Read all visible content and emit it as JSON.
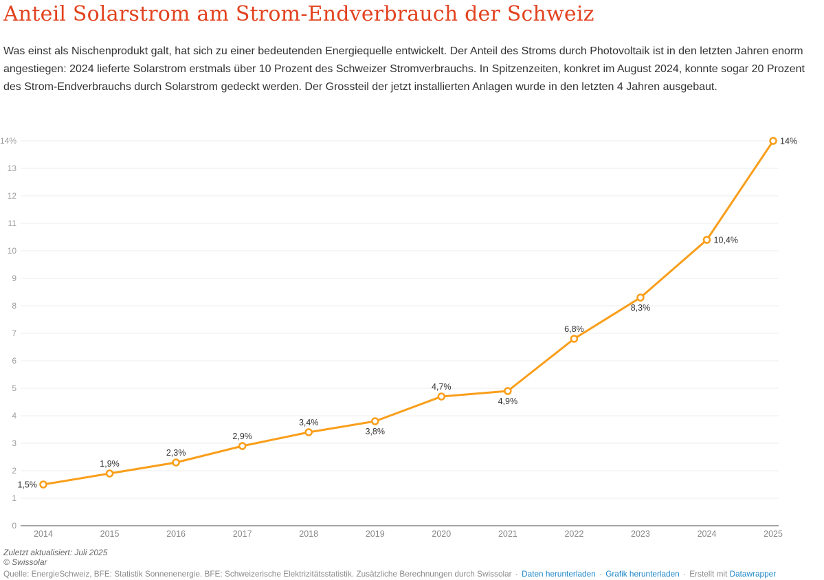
{
  "header": {
    "title": "Anteil Solarstrom am Strom-Endverbrauch der Schweiz",
    "description": "Was einst als Nischenprodukt galt, hat sich zu einer bedeutenden Energiequelle entwickelt. Der Anteil des Stroms durch Photovoltaik ist in den letzten Jahren enorm angestiegen: 2024 lieferte Solarstrom erstmals über 10 Prozent des Schweizer Stromverbrauchs. In Spitzenzeiten, konkret im August 2024, konnte sogar 20 Prozent des Strom-Endverbrauchs durch Solarstrom gedeckt werden. Der Grossteil der jetzt installierten Anlagen wurde in den letzten 4 Jahren ausgebaut."
  },
  "chart_data": {
    "type": "line",
    "title": "Anteil Solarstrom am Strom-Endverbrauch der Schweiz",
    "x": [
      2014,
      2015,
      2016,
      2017,
      2018,
      2019,
      2020,
      2021,
      2022,
      2023,
      2024,
      2025
    ],
    "values": [
      1.5,
      1.9,
      2.3,
      2.9,
      3.4,
      3.8,
      4.7,
      4.9,
      6.8,
      8.3,
      10.4,
      14
    ],
    "point_labels": [
      "1,5%",
      "1,9%",
      "2,3%",
      "2,9%",
      "3,4%",
      "3,8%",
      "4,7%",
      "4,9%",
      "6,8%",
      "8,3%",
      "10,4%",
      "14%"
    ],
    "label_positions": [
      "left",
      "above",
      "above",
      "above",
      "above",
      "below",
      "above",
      "below",
      "above",
      "below",
      "right",
      "right"
    ],
    "xlabel": "",
    "ylabel": "",
    "ylim": [
      0,
      14
    ],
    "ytick_step": 1,
    "top_tick_label": "14%",
    "grid": true,
    "legend": "none",
    "line_color": "#f99e1a",
    "marker": "open-circle",
    "marker_fill": "#ffffff",
    "gridline_color": "#ececec",
    "baseline_color": "#a3a3a3",
    "ytick_color": "#9c9c9c",
    "xtick_color": "#868686",
    "data_label_color": "#333333"
  },
  "footer": {
    "updated": "Zuletzt aktualisiert: Juli 2025",
    "copyright": "© Swissolar",
    "source": "Quelle: EnergieSchweiz, BFE: Statistik Sonnenenergie. BFE: Schweizerische Elektrizitätsstatistik. Zusätzliche Berechnungen durch Swissolar",
    "separator": "·",
    "links": {
      "download_data": "Daten herunterladen",
      "download_image": "Grafik herunterladen",
      "created_with": "Erstellt mit",
      "datawrapper": "Datawrapper"
    },
    "link_color": "#1e87c9"
  },
  "colors": {
    "title": "#e2421f",
    "body_text": "#333333",
    "accent_line": "#f99e1a",
    "background": "#ffffff"
  }
}
